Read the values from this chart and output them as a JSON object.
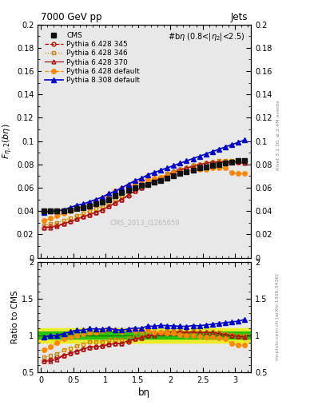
{
  "title_left": "7000 GeV pp",
  "title_right": "Jets",
  "annotation": "#bη (0.8<|η₂|<2.5)",
  "watermark": "CMS_2013_I1265659",
  "right_label_top": "Rivet 3.1.10; ≥ 2.4M events",
  "right_label_bot": "mcplots.cern.ch [arXiv:1306.3436]",
  "ylabel_main": "$F_{\\eta,2}(b\\eta)$",
  "ylabel_ratio": "Ratio to CMS",
  "xlabel": "bη",
  "ylim_main": [
    0.0,
    0.2
  ],
  "ylim_ratio": [
    0.5,
    2.0
  ],
  "xlim": [
    -0.05,
    3.25
  ],
  "cms_x": [
    0.05,
    0.15,
    0.25,
    0.35,
    0.45,
    0.55,
    0.65,
    0.75,
    0.85,
    0.95,
    1.05,
    1.15,
    1.25,
    1.35,
    1.45,
    1.55,
    1.65,
    1.75,
    1.85,
    1.95,
    2.05,
    2.15,
    2.25,
    2.35,
    2.45,
    2.55,
    2.65,
    2.75,
    2.85,
    2.95,
    3.05,
    3.15
  ],
  "cms_y": [
    0.04,
    0.04,
    0.04,
    0.04,
    0.041,
    0.042,
    0.043,
    0.044,
    0.046,
    0.048,
    0.05,
    0.053,
    0.056,
    0.058,
    0.06,
    0.062,
    0.063,
    0.065,
    0.066,
    0.068,
    0.07,
    0.072,
    0.074,
    0.075,
    0.077,
    0.078,
    0.079,
    0.08,
    0.081,
    0.082,
    0.083,
    0.083
  ],
  "p6_345_x": [
    0.05,
    0.15,
    0.25,
    0.35,
    0.45,
    0.55,
    0.65,
    0.75,
    0.85,
    0.95,
    1.05,
    1.15,
    1.25,
    1.35,
    1.45,
    1.55,
    1.65,
    1.75,
    1.85,
    1.95,
    2.05,
    2.15,
    2.25,
    2.35,
    2.45,
    2.55,
    2.65,
    2.75,
    2.85,
    2.95,
    3.05,
    3.15
  ],
  "p6_345_y": [
    0.026,
    0.027,
    0.028,
    0.029,
    0.031,
    0.033,
    0.035,
    0.037,
    0.039,
    0.041,
    0.044,
    0.047,
    0.05,
    0.053,
    0.057,
    0.06,
    0.063,
    0.066,
    0.068,
    0.071,
    0.074,
    0.076,
    0.077,
    0.079,
    0.08,
    0.081,
    0.082,
    0.082,
    0.082,
    0.082,
    0.082,
    0.082
  ],
  "p6_346_x": [
    0.05,
    0.15,
    0.25,
    0.35,
    0.45,
    0.55,
    0.65,
    0.75,
    0.85,
    0.95,
    1.05,
    1.15,
    1.25,
    1.35,
    1.45,
    1.55,
    1.65,
    1.75,
    1.85,
    1.95,
    2.05,
    2.15,
    2.25,
    2.35,
    2.45,
    2.55,
    2.65,
    2.75,
    2.85,
    2.95,
    3.05,
    3.15
  ],
  "p6_346_y": [
    0.028,
    0.029,
    0.03,
    0.032,
    0.034,
    0.036,
    0.038,
    0.04,
    0.042,
    0.044,
    0.047,
    0.05,
    0.053,
    0.056,
    0.059,
    0.062,
    0.064,
    0.067,
    0.069,
    0.072,
    0.074,
    0.076,
    0.077,
    0.079,
    0.08,
    0.081,
    0.082,
    0.083,
    0.083,
    0.083,
    0.083,
    0.083
  ],
  "p6_370_x": [
    0.05,
    0.15,
    0.25,
    0.35,
    0.45,
    0.55,
    0.65,
    0.75,
    0.85,
    0.95,
    1.05,
    1.15,
    1.25,
    1.35,
    1.45,
    1.55,
    1.65,
    1.75,
    1.85,
    1.95,
    2.05,
    2.15,
    2.25,
    2.35,
    2.45,
    2.55,
    2.65,
    2.75,
    2.85,
    2.95,
    3.05,
    3.15
  ],
  "p6_370_y": [
    0.026,
    0.026,
    0.027,
    0.029,
    0.031,
    0.033,
    0.035,
    0.037,
    0.039,
    0.041,
    0.044,
    0.047,
    0.05,
    0.054,
    0.057,
    0.06,
    0.063,
    0.065,
    0.068,
    0.07,
    0.073,
    0.075,
    0.077,
    0.078,
    0.08,
    0.081,
    0.082,
    0.082,
    0.082,
    0.082,
    0.082,
    0.081
  ],
  "p6_def_x": [
    0.05,
    0.15,
    0.25,
    0.35,
    0.45,
    0.55,
    0.65,
    0.75,
    0.85,
    0.95,
    1.05,
    1.15,
    1.25,
    1.35,
    1.45,
    1.55,
    1.65,
    1.75,
    1.85,
    1.95,
    2.05,
    2.15,
    2.25,
    2.35,
    2.45,
    2.55,
    2.65,
    2.75,
    2.85,
    2.95,
    3.05,
    3.15
  ],
  "p6_def_y": [
    0.032,
    0.034,
    0.036,
    0.038,
    0.04,
    0.042,
    0.044,
    0.046,
    0.048,
    0.051,
    0.054,
    0.057,
    0.059,
    0.062,
    0.064,
    0.066,
    0.067,
    0.068,
    0.069,
    0.07,
    0.072,
    0.073,
    0.074,
    0.075,
    0.076,
    0.076,
    0.077,
    0.077,
    0.077,
    0.073,
    0.072,
    0.072
  ],
  "p8_def_x": [
    0.05,
    0.15,
    0.25,
    0.35,
    0.45,
    0.55,
    0.65,
    0.75,
    0.85,
    0.95,
    1.05,
    1.15,
    1.25,
    1.35,
    1.45,
    1.55,
    1.65,
    1.75,
    1.85,
    1.95,
    2.05,
    2.15,
    2.25,
    2.35,
    2.45,
    2.55,
    2.65,
    2.75,
    2.85,
    2.95,
    3.05,
    3.15
  ],
  "p8_def_y": [
    0.039,
    0.04,
    0.04,
    0.041,
    0.043,
    0.045,
    0.046,
    0.048,
    0.05,
    0.052,
    0.055,
    0.057,
    0.06,
    0.063,
    0.066,
    0.068,
    0.071,
    0.073,
    0.075,
    0.077,
    0.079,
    0.081,
    0.083,
    0.085,
    0.087,
    0.089,
    0.091,
    0.093,
    0.095,
    0.097,
    0.099,
    0.101
  ],
  "color_p6_345": "#cc0000",
  "color_p6_346": "#cc8800",
  "color_p6_370": "#aa1111",
  "color_p6_def": "#ff8800",
  "color_p8_def": "#0000cc",
  "color_cms": "#111111",
  "band_yellow": "#eeee00",
  "band_green": "#00bb00",
  "yticks_main": [
    0.0,
    0.02,
    0.04,
    0.06,
    0.08,
    0.1,
    0.12,
    0.14,
    0.16,
    0.18,
    0.2
  ],
  "ytick_labels_main": [
    "0",
    "0.02",
    "0.04",
    "0.06",
    "0.08",
    "0.1",
    "0.12",
    "0.14",
    "0.16",
    "0.18",
    "0.2"
  ],
  "yticks_ratio": [
    0.5,
    1.0,
    1.5,
    2.0
  ],
  "ytick_labels_ratio": [
    "0.5",
    "1",
    "1.5",
    "2"
  ],
  "xticks": [
    0,
    0.5,
    1,
    1.5,
    2,
    2.5,
    3
  ],
  "xtick_labels": [
    "0",
    "0.5",
    "1",
    "1.5",
    "2",
    "2.5",
    "3"
  ]
}
